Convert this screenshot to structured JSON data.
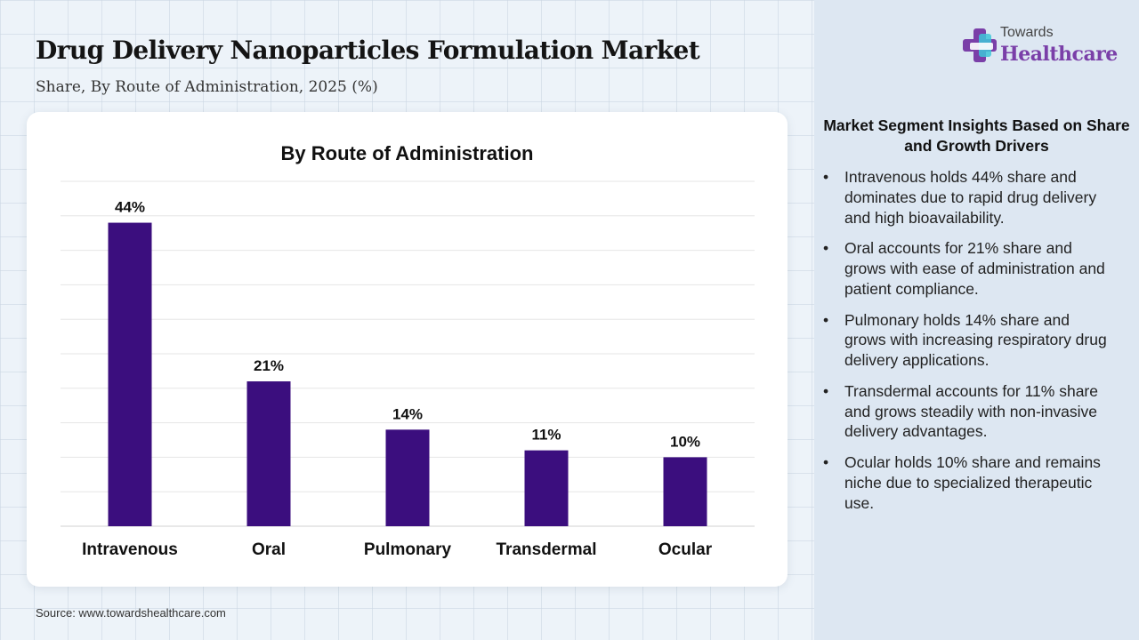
{
  "header": {
    "title": "Drug Delivery Nanoparticles Formulation Market",
    "subtitle": "Share, By Route of Administration, 2025 (%)"
  },
  "logo": {
    "top_text": "Towards",
    "main_text": "Healthcare"
  },
  "chart_data": {
    "type": "bar",
    "title": "By Route of Administration",
    "categories": [
      "Intravenous",
      "Oral",
      "Pulmonary",
      "Transdermal",
      "Ocular"
    ],
    "values": [
      44,
      21,
      14,
      11,
      10
    ],
    "data_labels": [
      "44%",
      "21%",
      "14%",
      "11%",
      "10%"
    ],
    "xlabel": "",
    "ylabel": "",
    "ylim": [
      0,
      50
    ],
    "grid": true,
    "bar_color": "#3b0e7e"
  },
  "insights": {
    "title": "Market Segment Insights Based on Share and Growth Drivers",
    "bullet": "•",
    "items": [
      "Intravenous holds 44% share and dominates due to rapid drug delivery and high bioavailability.",
      "Oral accounts for 21% share and grows with ease of administration and patient compliance.",
      "Pulmonary holds 14% share and grows with increasing respiratory drug delivery applications.",
      "Transdermal accounts for 11% share and grows steadily with non-invasive delivery advantages.",
      "Ocular holds 10% share and remains niche due to specialized therapeutic use."
    ]
  },
  "footer": {
    "source": "Source: www.towardshealthcare.com"
  },
  "colors": {
    "accent": "#7a3fa8",
    "bar": "#3b0e7e",
    "panel": "#dde7f2"
  }
}
